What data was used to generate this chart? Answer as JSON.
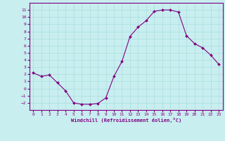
{
  "x": [
    0,
    1,
    2,
    3,
    4,
    5,
    6,
    7,
    8,
    9,
    10,
    11,
    12,
    13,
    14,
    15,
    16,
    17,
    18,
    19,
    20,
    21,
    22,
    23
  ],
  "y": [
    2.2,
    1.7,
    1.9,
    0.8,
    -0.3,
    -2.0,
    -2.2,
    -2.2,
    -2.1,
    -1.3,
    1.7,
    3.8,
    7.3,
    8.6,
    9.5,
    10.8,
    11.0,
    11.0,
    10.7,
    7.4,
    6.3,
    5.7,
    4.7,
    3.4
  ],
  "line_color": "#800080",
  "marker_color": "#800080",
  "bg_color": "#c8eef0",
  "grid_color": "#aadddd",
  "xlabel": "Windchill (Refroidissement éolien,°C)",
  "xlabel_color": "#800080",
  "tick_color": "#800080",
  "ylim": [
    -3,
    12
  ],
  "xlim": [
    -0.5,
    23.5
  ],
  "yticks": [
    -2,
    -1,
    0,
    1,
    2,
    3,
    4,
    5,
    6,
    7,
    8,
    9,
    10,
    11
  ],
  "xticks": [
    0,
    1,
    2,
    3,
    4,
    5,
    6,
    7,
    8,
    9,
    10,
    11,
    12,
    13,
    14,
    15,
    16,
    17,
    18,
    19,
    20,
    21,
    22,
    23
  ]
}
